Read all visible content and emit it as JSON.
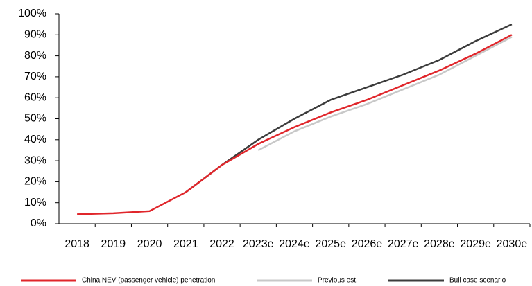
{
  "chart_data": {
    "type": "line",
    "categories": [
      "2018",
      "2019",
      "2020",
      "2021",
      "2022",
      "2023e",
      "2024e",
      "2025e",
      "2026e",
      "2027e",
      "2028e",
      "2029e",
      "2030e"
    ],
    "series": [
      {
        "name": "China NEV (passenger vehicle) penetration",
        "color": "#e0262b",
        "values": [
          4.5,
          5,
          6,
          15,
          28,
          38,
          46,
          53,
          59,
          66,
          73,
          81,
          90
        ]
      },
      {
        "name": "Previous est.",
        "color": "#c8c8c8",
        "values": [
          null,
          null,
          null,
          null,
          null,
          35,
          44,
          51,
          57,
          64,
          71,
          80,
          89
        ]
      },
      {
        "name": "Bull case scenario",
        "color": "#3c3c3c",
        "values": [
          null,
          null,
          null,
          15,
          28,
          40,
          50,
          59,
          65,
          71,
          78,
          87,
          95
        ]
      }
    ],
    "ylim": [
      0,
      100
    ],
    "yticks": [
      {
        "value": 0,
        "label": "0%"
      },
      {
        "value": 10,
        "label": "10%"
      },
      {
        "value": 20,
        "label": "20%"
      },
      {
        "value": 30,
        "label": "30%"
      },
      {
        "value": 40,
        "label": "40%"
      },
      {
        "value": 50,
        "label": "50%"
      },
      {
        "value": 60,
        "label": "60%"
      },
      {
        "value": 70,
        "label": "70%"
      },
      {
        "value": 80,
        "label": "80%"
      },
      {
        "value": 90,
        "label": "90%"
      },
      {
        "value": 100,
        "label": "100%"
      }
    ],
    "legend": "bottom"
  }
}
